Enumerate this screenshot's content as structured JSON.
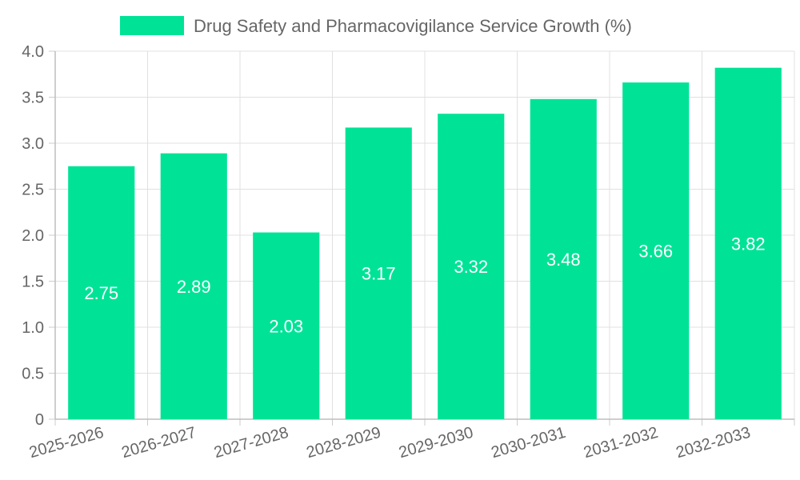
{
  "chart_data": {
    "type": "bar",
    "series": [
      {
        "name": "Drug Safety and Pharmacovigilance Service Growth (%)",
        "color": "#00e396",
        "values": [
          2.75,
          2.89,
          2.03,
          3.17,
          3.32,
          3.48,
          3.66,
          3.82
        ]
      }
    ],
    "categories": [
      "2025-2026",
      "2026-2027",
      "2027-2028",
      "2028-2029",
      "2029-2030",
      "2030-2031",
      "2031-2032",
      "2032-2033"
    ],
    "value_labels": [
      "2.75",
      "2.89",
      "2.03",
      "3.17",
      "3.32",
      "3.48",
      "3.66",
      "3.82"
    ],
    "y_ticks": [
      "0",
      "0.5",
      "1.0",
      "1.5",
      "2.0",
      "2.5",
      "3.0",
      "3.5",
      "4.0"
    ],
    "ylim": [
      0,
      4
    ],
    "y_step": 0.5,
    "grid": true,
    "legend_position": "top",
    "title": "",
    "xlabel": "",
    "ylabel": ""
  }
}
